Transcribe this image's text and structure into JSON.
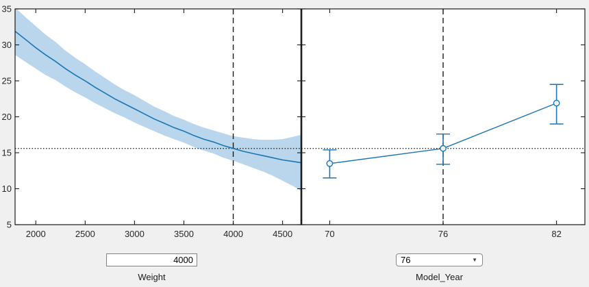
{
  "figure": {
    "background": "#f0f0f0",
    "plot_background": "#ffffff"
  },
  "controls": {
    "weight": {
      "value": "4000",
      "label": "Weight"
    },
    "model_year": {
      "value": "76",
      "label": "Model_Year"
    }
  },
  "chart_data": [
    {
      "type": "line",
      "title": "",
      "xlabel": "Weight",
      "ylabel": "",
      "xlim": [
        1790,
        4690
      ],
      "ylim": [
        5,
        35
      ],
      "xticks": [
        2000,
        2500,
        3000,
        3500,
        4000,
        4500
      ],
      "yticks": [
        5,
        10,
        15,
        20,
        25,
        30,
        35
      ],
      "grid": false,
      "reference": {
        "x": 4000,
        "y": 15.6
      },
      "series": [
        {
          "name": "prediction",
          "x": [
            1790,
            1900,
            2000,
            2100,
            2200,
            2300,
            2400,
            2500,
            2600,
            2700,
            2800,
            2900,
            3000,
            3100,
            3200,
            3300,
            3400,
            3500,
            3600,
            3700,
            3800,
            3900,
            4000,
            4100,
            4200,
            4300,
            4400,
            4500,
            4600,
            4690
          ],
          "y": [
            31.9,
            30.7,
            29.6,
            28.6,
            27.7,
            26.7,
            25.8,
            25.0,
            24.1,
            23.3,
            22.5,
            21.8,
            21.1,
            20.4,
            19.7,
            19.1,
            18.5,
            18.0,
            17.4,
            16.9,
            16.5,
            16.0,
            15.6,
            15.2,
            14.9,
            14.6,
            14.3,
            14.0,
            13.8,
            13.6
          ]
        },
        {
          "name": "confidence-band",
          "x": [
            1790,
            1900,
            2000,
            2100,
            2200,
            2300,
            2400,
            2500,
            2600,
            2700,
            2800,
            2900,
            3000,
            3100,
            3200,
            3300,
            3400,
            3500,
            3600,
            3700,
            3800,
            3900,
            4000,
            4100,
            4200,
            4300,
            4400,
            4500,
            4600,
            4690
          ],
          "low": [
            28.6,
            27.6,
            26.7,
            25.8,
            25.1,
            24.2,
            23.4,
            22.7,
            21.9,
            21.2,
            20.5,
            19.9,
            19.2,
            18.6,
            18.0,
            17.4,
            16.9,
            16.4,
            15.8,
            15.3,
            14.9,
            14.3,
            13.9,
            13.4,
            12.9,
            12.4,
            11.8,
            11.1,
            10.4,
            9.7
          ],
          "high": [
            35.2,
            33.8,
            32.6,
            31.4,
            30.4,
            29.2,
            28.2,
            27.3,
            26.3,
            25.4,
            24.5,
            23.7,
            23.0,
            22.2,
            21.4,
            20.8,
            20.1,
            19.6,
            19.0,
            18.5,
            18.1,
            17.7,
            17.3,
            17.1,
            16.9,
            16.8,
            16.8,
            16.9,
            17.2,
            17.5
          ]
        }
      ],
      "colors": {
        "line": "#1a75b5",
        "band": "#b9d6ec",
        "reference": "#1a1a1a"
      }
    },
    {
      "type": "scatter",
      "title": "",
      "xlabel": "Model_Year",
      "ylabel": "",
      "categories": [
        "70",
        "76",
        "82"
      ],
      "values": [
        13.5,
        15.6,
        21.9
      ],
      "ci_low": [
        11.5,
        13.4,
        19.0
      ],
      "ci_high": [
        15.4,
        17.6,
        24.5
      ],
      "ylim": [
        5,
        35
      ],
      "yticks": [
        5,
        10,
        15,
        20,
        25,
        30,
        35
      ],
      "grid": false,
      "reference": {
        "x": "76",
        "y": 15.6
      },
      "colors": {
        "line": "#1a75b5",
        "reference": "#1a1a1a"
      }
    }
  ]
}
